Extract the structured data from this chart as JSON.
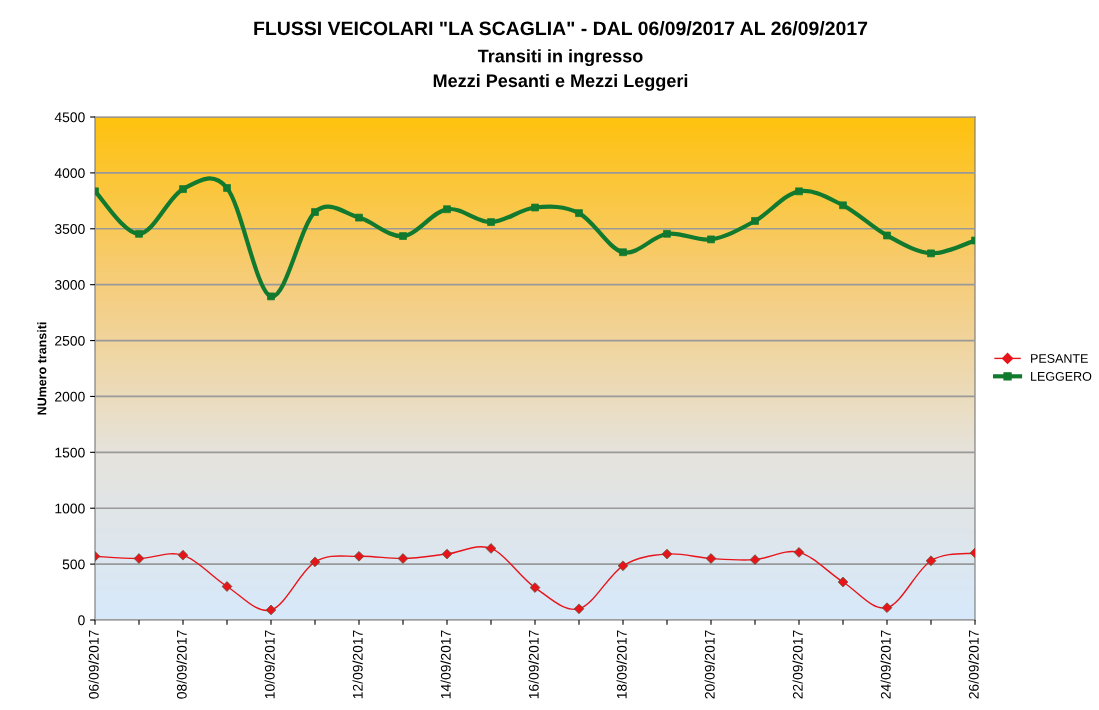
{
  "chart_data": {
    "type": "line",
    "title": "FLUSSI VEICOLARI \"LA SCAGLIA\" - DAL 06/09/2017 AL 26/09/2017",
    "subtitle": "Transiti in ingresso\nMezzi Pesanti e Mezzi Leggeri",
    "ylabel": "NUmero transiti",
    "categories": [
      "06/09/2017",
      null,
      "08/09/2017",
      null,
      "10/09/2017",
      null,
      "12/09/2017",
      null,
      "14/09/2017",
      null,
      "16/09/2017",
      null,
      "18/09/2017",
      null,
      "20/09/2017",
      null,
      "22/09/2017",
      null,
      "24/09/2017",
      null,
      "26/09/2017"
    ],
    "series": [
      {
        "name": "PESANTE",
        "color": "#e8141b",
        "marker": "diamond",
        "values": [
          570,
          550,
          580,
          300,
          90,
          520,
          570,
          550,
          590,
          640,
          290,
          100,
          485,
          590,
          550,
          540,
          605,
          340,
          110,
          530,
          600
        ]
      },
      {
        "name": "LEGGERO",
        "color": "#117a2f",
        "marker": "square",
        "values": [
          3835,
          3455,
          3855,
          3865,
          2895,
          3650,
          3600,
          3435,
          3675,
          3560,
          3690,
          3640,
          3290,
          3455,
          3405,
          3570,
          3835,
          3710,
          3440,
          3280,
          3395
        ]
      }
    ],
    "ylim": [
      0,
      4500
    ],
    "yticks": [
      0,
      500,
      1000,
      1500,
      2000,
      2500,
      3000,
      3500,
      4000,
      4500
    ],
    "grid": "y",
    "legend": "right",
    "line_style": "solid"
  }
}
